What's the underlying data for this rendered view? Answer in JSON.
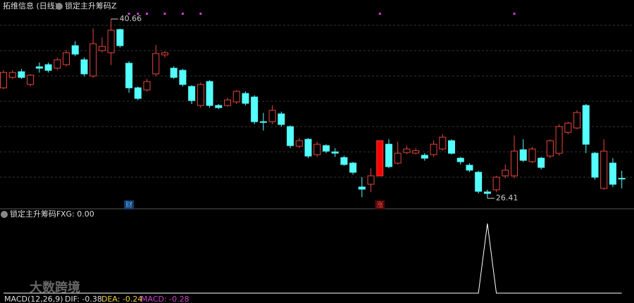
{
  "chart_data": {
    "type": "candlestick",
    "title": "拓维信息 (日线)",
    "indicator": "锁定主升筹码Z",
    "ylim": [
      25.97,
      41.89
    ],
    "up_color": "#e8453c",
    "down_color": "#54ffff",
    "filled_up": [
      42
    ],
    "open": [
      35.19,
      36.02,
      36.47,
      35.46,
      36.86,
      37.03,
      36.75,
      37.03,
      38.54,
      37.42,
      36.13,
      38.15,
      37.98,
      39.82,
      37.14,
      35.19,
      35.02,
      36.3,
      37.81,
      36.75,
      36.58,
      35.3,
      33.79,
      35.69,
      33.79,
      33.79,
      34.07,
      34.74,
      34.46,
      32.5,
      32.5,
      33.12,
      32.11,
      30.55,
      31.1,
      29.88,
      30.6,
      30.1,
      29.65,
      29.21,
      27.31,
      27.53,
      28.2,
      30.71,
      29.21,
      30.05,
      30.0,
      29.83,
      29.88,
      30.33,
      30.99,
      29.6,
      29.04,
      28.48,
      26.92,
      27.09,
      28.2,
      28.2,
      30.27,
      29.32,
      29.6,
      29.77,
      29.99,
      31.66,
      32.0,
      33.79,
      29.99,
      27.2,
      29.21,
      28.0
    ],
    "high": [
      36.58,
      36.58,
      36.7,
      36.3,
      37.2,
      37.2,
      37.6,
      38.2,
      38.9,
      37.6,
      39.9,
      39.2,
      40.66,
      39.9,
      37.3,
      35.3,
      35.9,
      38.6,
      38.1,
      36.9,
      36.7,
      35.4,
      35.6,
      35.8,
      33.9,
      34.4,
      35.0,
      34.9,
      34.6,
      33.2,
      33.8,
      33.3,
      32.2,
      31.2,
      31.2,
      30.9,
      30.7,
      30.4,
      29.8,
      29.3,
      28.1,
      28.8,
      31.0,
      31.1,
      30.9,
      30.6,
      30.4,
      30.0,
      31.0,
      31.5,
      31.1,
      29.7,
      29.2,
      28.6,
      27.1,
      28.2,
      29.1,
      31.4,
      31.1,
      30.5,
      29.7,
      31.1,
      32.3,
      32.5,
      33.4,
      33.9,
      30.1,
      31.1,
      29.6,
      28.6
    ],
    "low": [
      35.08,
      35.9,
      35.9,
      35.3,
      36.4,
      36.4,
      36.6,
      36.9,
      37.7,
      36.1,
      36.0,
      38.0,
      37.0,
      38.4,
      34.8,
      34.2,
      34.9,
      36.1,
      37.6,
      35.9,
      35.3,
      33.9,
      33.6,
      33.6,
      33.5,
      33.7,
      33.9,
      33.8,
      32.3,
      31.8,
      32.3,
      32.1,
      30.4,
      30.4,
      29.6,
      29.7,
      30.0,
      29.7,
      29.0,
      28.3,
      26.5,
      26.9,
      28.2,
      28.8,
      29.1,
      29.9,
      29.9,
      29.4,
      29.7,
      30.2,
      29.9,
      29.1,
      28.5,
      26.8,
      26.41,
      26.9,
      28.0,
      28.0,
      29.3,
      29.2,
      28.7,
      29.6,
      29.8,
      31.5,
      31.9,
      30.0,
      27.9,
      27.1,
      27.3,
      27.2
    ],
    "close": [
      36.41,
      36.41,
      36.02,
      36.19,
      36.75,
      36.58,
      37.42,
      37.98,
      37.87,
      36.3,
      38.7,
      38.48,
      39.77,
      38.54,
      35.19,
      34.35,
      35.69,
      37.92,
      37.98,
      36.02,
      35.46,
      34.18,
      35.46,
      33.79,
      33.62,
      34.23,
      34.91,
      33.96,
      32.5,
      32.45,
      33.4,
      32.28,
      30.6,
      30.99,
      29.77,
      30.71,
      30.16,
      30.0,
      29.1,
      28.48,
      27.14,
      28.2,
      30.99,
      28.93,
      29.99,
      30.33,
      30.2,
      29.6,
      30.71,
      31.27,
      29.99,
      29.32,
      28.65,
      26.97,
      26.8,
      28.09,
      28.65,
      30.16,
      29.43,
      30.33,
      28.87,
      30.99,
      32.11,
      32.39,
      33.23,
      30.71,
      28.09,
      30.16,
      27.53,
      27.95
    ],
    "signal_dots": [
      14,
      15,
      16,
      18,
      20,
      22,
      42,
      57
    ],
    "signal_color": "#d040d0",
    "annotations": [
      {
        "index": 12,
        "label": "40.66",
        "at": "high"
      },
      {
        "index": 54,
        "label": "26.41",
        "at": "low"
      }
    ],
    "tags": [
      {
        "index": 14,
        "label": "财",
        "color": "#4fb0ff",
        "background": "#173a66"
      },
      {
        "index": 42,
        "label": "涨",
        "color": "#ff4040",
        "background": "#4a0a0a"
      }
    ],
    "lower": {
      "title": "锁定主升筹码F",
      "readout": "XG: 0.00",
      "color": "#ffffff",
      "ylim": [
        0,
        1
      ],
      "values": [
        0,
        0,
        0,
        0,
        0,
        0,
        0,
        0,
        0,
        0,
        0,
        0,
        0,
        0,
        0,
        0,
        0,
        0,
        0,
        0,
        0,
        0,
        0,
        0,
        0,
        0,
        0,
        0,
        0,
        0,
        0,
        0,
        0,
        0,
        0,
        0,
        0,
        0,
        0,
        0,
        0,
        0,
        0,
        0,
        0,
        0,
        0,
        0,
        0,
        0,
        0,
        0,
        0,
        0,
        1,
        0,
        0,
        0,
        0,
        0,
        0,
        0,
        0,
        0,
        0,
        0,
        0,
        0,
        0,
        0
      ]
    },
    "macd": {
      "name": "MACD(12,26,9)",
      "dif": "DIF: -0.38",
      "dea": "DEA: -0.24",
      "macd": "MACD: -0.28"
    },
    "watermark": "大数跨境"
  }
}
